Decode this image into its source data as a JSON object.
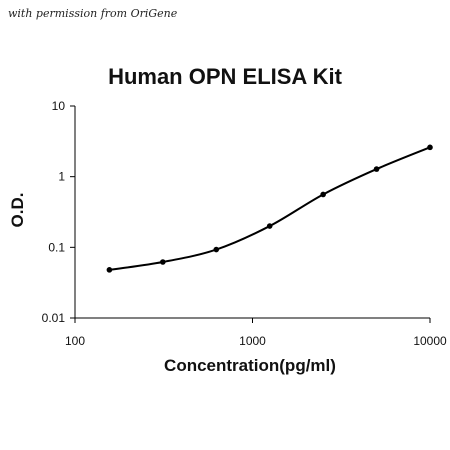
{
  "watermark": "with permission from OriGene",
  "chart_data": {
    "type": "line",
    "title": "Human OPN ELISA Kit",
    "xlabel": "Concentration(pg/ml)",
    "ylabel": "O.D.",
    "xscale": "log",
    "yscale": "log",
    "xlim": [
      100,
      10000
    ],
    "ylim": [
      0.01,
      10
    ],
    "x_ticks": [
      {
        "value": 100,
        "label": "100"
      },
      {
        "value": 1000,
        "label": "1000"
      },
      {
        "value": 10000,
        "label": "10000"
      }
    ],
    "y_ticks": [
      {
        "value": 0.01,
        "label": "0.01"
      },
      {
        "value": 0.1,
        "label": "0.1"
      },
      {
        "value": 1,
        "label": "1"
      },
      {
        "value": 10,
        "label": "10"
      }
    ],
    "grid": false,
    "series": [
      {
        "x": [
          156.25,
          312.5,
          625,
          1250,
          2500,
          5000,
          10000
        ],
        "y": [
          0.048,
          0.062,
          0.093,
          0.2,
          0.56,
          1.28,
          2.6
        ],
        "color": "#000000",
        "marker": "circle"
      }
    ]
  }
}
